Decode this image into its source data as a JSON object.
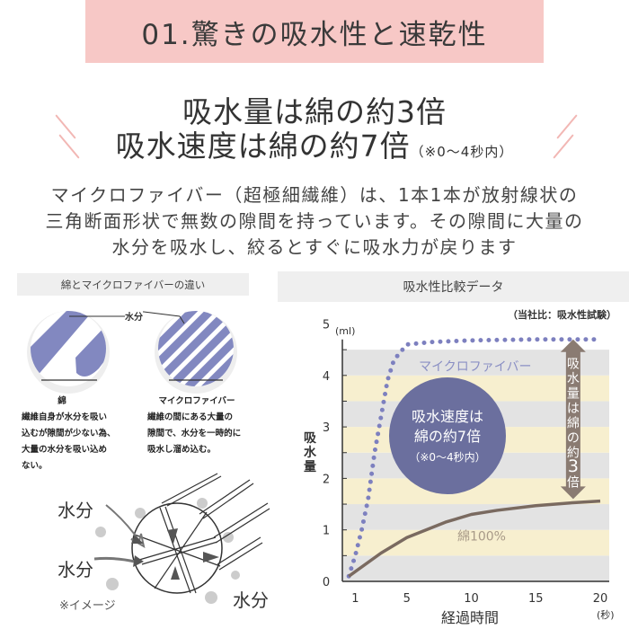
{
  "banner": {
    "title": "01.驚きの吸水性と速乾性"
  },
  "headline": {
    "line1": "吸水量は綿の約3倍",
    "line2": "吸水速度は綿の約7倍",
    "line2_note": "（※0～4秒内）"
  },
  "description": [
    "マイクロファイバー（超極細繊維）は、1本1本が放射線状の",
    "三角断面形状で無数の隙間を持っています。その隙間に大量の",
    "水分を吸水し、絞るとすぐに吸水力が戻ります"
  ],
  "comparison": {
    "header": "綿とマイクロファイバーの違い",
    "water_label": "水分",
    "cotton": {
      "title": "綿",
      "lines": [
        "繊維自身が水分を吸い",
        "込むが隙間が少ない為、",
        "大量の水分を吸い込め",
        "ない。"
      ]
    },
    "microfiber": {
      "title": "マイクロファイバー",
      "lines": [
        "繊維の間にある大量の",
        "隙間で、水分を一時的に",
        "吸水し溜め込む。"
      ]
    },
    "illustration": {
      "water_labels": [
        "水分",
        "水分",
        "水分"
      ],
      "note": "※イメージ"
    }
  },
  "chart_data": {
    "type": "line",
    "title": "吸水性比較データ",
    "source_note": "（当社比：吸水性試験）",
    "xlabel": "経過時間",
    "x_unit": "(秒)",
    "ylabel": "吸水量",
    "y_unit": "(ml)",
    "xlim": [
      0,
      20
    ],
    "ylim": [
      0,
      5
    ],
    "x_ticks": [
      1,
      5,
      10,
      15,
      20
    ],
    "y_ticks": [
      0,
      1,
      2,
      3,
      4,
      5
    ],
    "series": [
      {
        "name": "マイクロファイバー",
        "style": "dotted",
        "color": "#7d80bf",
        "x": [
          0.5,
          1,
          1.5,
          2,
          2.5,
          3,
          3.5,
          4,
          5,
          7,
          10,
          15,
          20
        ],
        "y": [
          0.1,
          0.5,
          1.0,
          1.6,
          2.5,
          3.2,
          3.9,
          4.3,
          4.6,
          4.65,
          4.68,
          4.7,
          4.7
        ]
      },
      {
        "name": "綿100%",
        "style": "solid",
        "color": "#7a6a60",
        "x": [
          0.5,
          3,
          5,
          8,
          10,
          12,
          15,
          18,
          20
        ],
        "y": [
          0.1,
          0.55,
          0.85,
          1.15,
          1.3,
          1.38,
          1.47,
          1.53,
          1.56
        ]
      }
    ],
    "bands": {
      "colors": [
        "#e3e3e3",
        "#f7efcf"
      ],
      "step": 0.5,
      "top": 4.5
    },
    "callout_circle": {
      "lines": [
        "吸水速度は",
        "綿の約7倍",
        "（※0～4秒内）"
      ],
      "color": "#6b6f9e"
    },
    "callout_arrow": {
      "text": "吸水量は綿の約3倍",
      "from": 1.6,
      "to": 4.7,
      "x": 17.9,
      "color": "#8a7b72"
    }
  },
  "colors": {
    "banner": "#f7c8c6",
    "accent_slash": "#f2b7b4",
    "fiber": "#8288c0"
  }
}
